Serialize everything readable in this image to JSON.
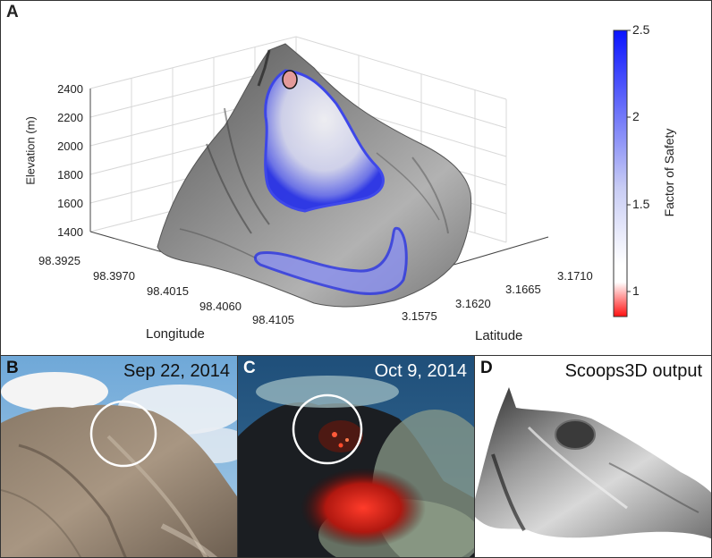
{
  "panel_a": {
    "label": "A",
    "z_axis": {
      "label": "Elevation (m)",
      "ticks": [
        "2400",
        "2200",
        "2000",
        "1800",
        "1600",
        "1400"
      ]
    },
    "x_axis": {
      "label": "Longitude",
      "ticks": [
        "98.3925",
        "98.3970",
        "98.4015",
        "98.4060",
        "98.4105"
      ]
    },
    "y_axis": {
      "label": "Latitude",
      "ticks": [
        "3.1575",
        "3.1620",
        "3.1665",
        "3.1710"
      ]
    },
    "colorbar": {
      "label": "Factor of Safety",
      "ticks": [
        "2.5",
        "2",
        "1.5",
        "1"
      ],
      "colors": {
        "low": "#ff0000",
        "mid": "#ffffff",
        "high": "#0000ff"
      }
    }
  },
  "panel_b": {
    "label": "B",
    "date": "Sep 22, 2014"
  },
  "panel_c": {
    "label": "C",
    "date": "Oct 9, 2014"
  },
  "panel_d": {
    "label": "D",
    "caption": "Scoops3D output"
  }
}
